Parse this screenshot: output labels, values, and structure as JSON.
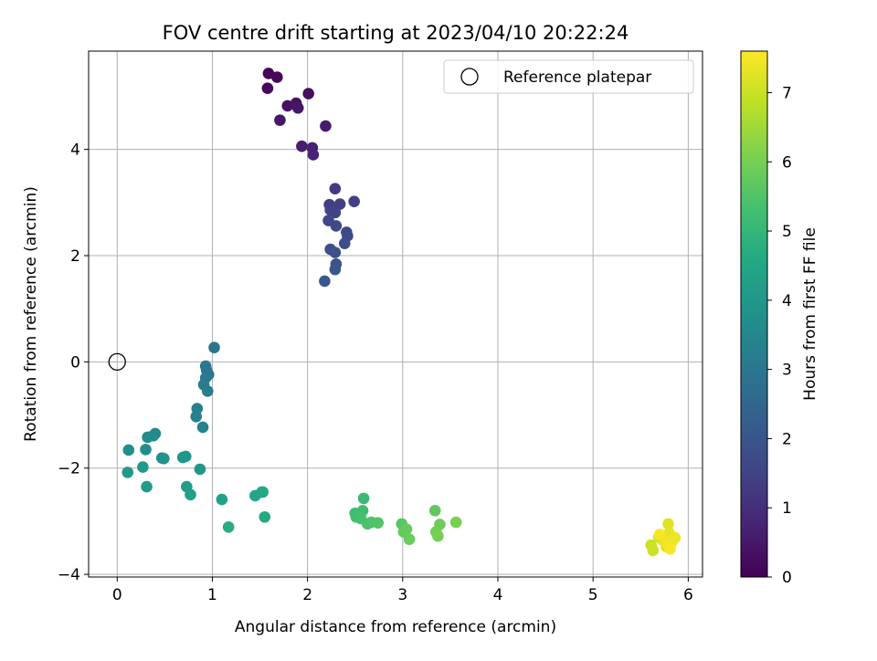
{
  "chart_data": {
    "type": "scatter",
    "title": "FOV centre drift starting at 2023/04/10 20:22:24",
    "xlabel": "Angular distance from reference (arcmin)",
    "ylabel": "Rotation from reference (arcmin)",
    "xlim": [
      -0.3,
      6.15
    ],
    "ylim": [
      -4.05,
      5.85
    ],
    "xticks": [
      0,
      1,
      2,
      3,
      4,
      5,
      6
    ],
    "yticks": [
      -4,
      -2,
      0,
      2,
      4
    ],
    "grid": true,
    "legend": {
      "position": "top-right",
      "entries": [
        "Reference platepar"
      ]
    },
    "reference_point": {
      "x": 0,
      "y": 0,
      "marker": "open-circle"
    },
    "colorbar": {
      "label": "Hours from first FF file",
      "range": [
        0,
        7.6
      ],
      "ticks": [
        0,
        1,
        2,
        3,
        4,
        5,
        6,
        7
      ],
      "colormap": "viridis"
    },
    "series": [
      {
        "points": [
          [
            1.59,
            5.43,
            0.1
          ],
          [
            1.68,
            5.36,
            0.15
          ],
          [
            1.58,
            5.15,
            0.2
          ],
          [
            2.01,
            5.05,
            0.3
          ],
          [
            1.79,
            4.82,
            0.35
          ],
          [
            1.88,
            4.87,
            0.4
          ],
          [
            1.9,
            4.78,
            0.45
          ],
          [
            1.71,
            4.55,
            0.5
          ],
          [
            2.19,
            4.44,
            0.55
          ],
          [
            1.94,
            4.06,
            0.6
          ],
          [
            2.05,
            4.03,
            0.7
          ],
          [
            2.06,
            3.9,
            0.75
          ],
          [
            2.29,
            3.26,
            1.3
          ],
          [
            2.23,
            2.96,
            1.35
          ],
          [
            2.34,
            2.97,
            1.4
          ],
          [
            2.49,
            3.02,
            1.45
          ],
          [
            2.24,
            2.86,
            1.5
          ],
          [
            2.29,
            2.81,
            1.55
          ],
          [
            2.22,
            2.66,
            1.6
          ],
          [
            2.3,
            2.56,
            1.65
          ],
          [
            2.41,
            2.44,
            1.7
          ],
          [
            2.42,
            2.37,
            1.75
          ],
          [
            2.39,
            2.23,
            1.8
          ],
          [
            2.24,
            2.12,
            1.85
          ],
          [
            2.29,
            2.06,
            1.9
          ],
          [
            2.3,
            1.84,
            1.95
          ],
          [
            2.29,
            1.74,
            2.0
          ],
          [
            2.18,
            1.52,
            2.05
          ],
          [
            1.02,
            0.27,
            2.9
          ],
          [
            0.93,
            -0.08,
            2.95
          ],
          [
            0.94,
            -0.16,
            3.0
          ],
          [
            0.96,
            -0.24,
            3.05
          ],
          [
            0.93,
            -0.3,
            3.1
          ],
          [
            0.91,
            -0.43,
            3.15
          ],
          [
            0.95,
            -0.55,
            3.2
          ],
          [
            0.84,
            -0.88,
            3.25
          ],
          [
            0.83,
            -1.03,
            3.3
          ],
          [
            0.9,
            -1.23,
            3.35
          ],
          [
            0.4,
            -1.35,
            3.55
          ],
          [
            0.38,
            -1.39,
            3.6
          ],
          [
            0.32,
            -1.42,
            3.65
          ],
          [
            0.3,
            -1.65,
            3.7
          ],
          [
            0.12,
            -1.66,
            3.75
          ],
          [
            0.47,
            -1.81,
            3.8
          ],
          [
            0.49,
            -1.82,
            3.85
          ],
          [
            0.72,
            -1.78,
            3.9
          ],
          [
            0.69,
            -1.8,
            3.95
          ],
          [
            0.87,
            -2.02,
            4.0
          ],
          [
            0.27,
            -1.98,
            4.05
          ],
          [
            0.11,
            -2.08,
            4.1
          ],
          [
            0.31,
            -2.35,
            4.15
          ],
          [
            0.73,
            -2.35,
            4.2
          ],
          [
            0.77,
            -2.5,
            4.25
          ],
          [
            1.1,
            -2.59,
            4.35
          ],
          [
            1.45,
            -2.52,
            4.45
          ],
          [
            1.52,
            -2.45,
            4.5
          ],
          [
            1.53,
            -2.45,
            4.55
          ],
          [
            1.55,
            -2.92,
            4.6
          ],
          [
            1.17,
            -3.11,
            4.65
          ],
          [
            2.59,
            -2.57,
            5.1
          ],
          [
            2.5,
            -2.85,
            5.2
          ],
          [
            2.58,
            -2.8,
            5.25
          ],
          [
            2.51,
            -2.92,
            5.3
          ],
          [
            2.56,
            -2.95,
            5.35
          ],
          [
            2.63,
            -3.05,
            5.4
          ],
          [
            2.67,
            -3.02,
            5.45
          ],
          [
            2.74,
            -3.03,
            5.5
          ],
          [
            2.99,
            -3.05,
            5.6
          ],
          [
            3.34,
            -2.8,
            5.7
          ],
          [
            3.01,
            -3.2,
            5.75
          ],
          [
            3.04,
            -3.15,
            5.8
          ],
          [
            3.07,
            -3.34,
            5.85
          ],
          [
            3.39,
            -3.06,
            5.9
          ],
          [
            3.35,
            -3.2,
            5.95
          ],
          [
            3.37,
            -3.28,
            6.0
          ],
          [
            3.56,
            -3.02,
            6.05
          ],
          [
            5.61,
            -3.45,
            7.0
          ],
          [
            5.63,
            -3.55,
            7.05
          ],
          [
            5.69,
            -3.3,
            7.1
          ],
          [
            5.73,
            -3.35,
            7.15
          ],
          [
            5.77,
            -3.48,
            7.2
          ],
          [
            5.79,
            -3.05,
            7.25
          ],
          [
            5.8,
            -3.22,
            7.3
          ],
          [
            5.83,
            -3.38,
            7.35
          ],
          [
            5.86,
            -3.31,
            7.4
          ],
          [
            5.76,
            -3.4,
            7.45
          ],
          [
            5.7,
            -3.25,
            7.5
          ],
          [
            5.81,
            -3.52,
            7.55
          ]
        ]
      }
    ]
  }
}
